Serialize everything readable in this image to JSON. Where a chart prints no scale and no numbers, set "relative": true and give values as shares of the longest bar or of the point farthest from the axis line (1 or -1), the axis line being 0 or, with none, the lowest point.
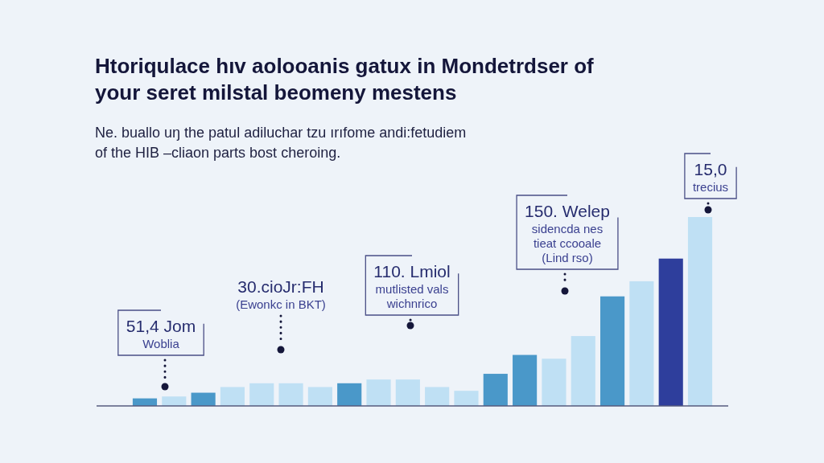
{
  "chart_data": {
    "type": "bar",
    "relative": true,
    "title": "Htoriqulace hıv aolooanis gatux in Mondetrdser of your seret milstal beomeny mestens",
    "subtitle": "Ne. buallo uŋ the patul adiluchar tzu ırıfome andi:fetudiem of the HIB –cliaon parts bost cheroing.",
    "categories": [
      null,
      null,
      null,
      null,
      null,
      null,
      null,
      null,
      null,
      null,
      null,
      null,
      null,
      null,
      null,
      null,
      null,
      null,
      null,
      null
    ],
    "values": [
      0.04,
      0.05,
      0.07,
      0.1,
      0.12,
      0.12,
      0.1,
      0.12,
      0.14,
      0.14,
      0.1,
      0.08,
      0.17,
      0.27,
      0.25,
      0.37,
      0.58,
      0.66,
      0.78,
      1
    ],
    "colors": [
      "#4a98c9",
      "#bfe0f4",
      "#4a98c9",
      "#bfe0f4",
      "#bfe0f4",
      "#bfe0f4",
      "#bfe0f4",
      "#4a98c9",
      "#bfe0f4",
      "#bfe0f4",
      "#bfe0f4",
      "#bfe0f4",
      "#4a98c9",
      "#4a98c9",
      "#bfe0f4",
      "#bfe0f4",
      "#4a98c9",
      "#bfe0f4",
      "#2e3e9c",
      "#bfe0f4"
    ],
    "annotations": [
      "51,4 Jom\nWoblia",
      "30.cioJr:FH\n(Ewonkc in BKT)",
      "110. Lmiol\nmutlisted vals\nwichnrico",
      "150. Welep\nsidencda nes\ntieat ccooale\n(Lind rso)",
      "15,0\ntrecius"
    ]
  }
}
